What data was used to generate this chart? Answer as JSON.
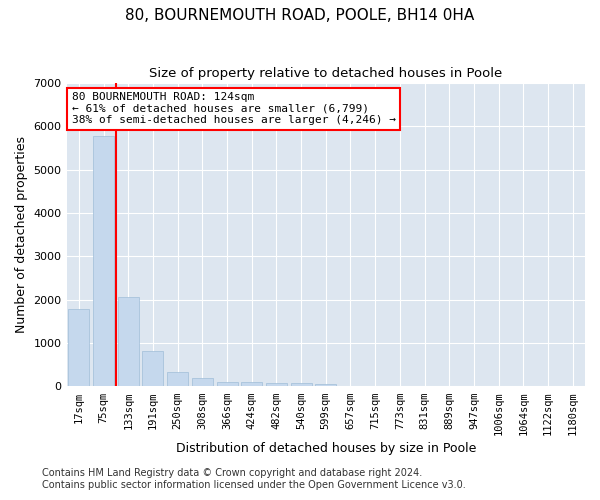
{
  "title1": "80, BOURNEMOUTH ROAD, POOLE, BH14 0HA",
  "title2": "Size of property relative to detached houses in Poole",
  "xlabel": "Distribution of detached houses by size in Poole",
  "ylabel": "Number of detached properties",
  "footnote1": "Contains HM Land Registry data © Crown copyright and database right 2024.",
  "footnote2": "Contains public sector information licensed under the Open Government Licence v3.0.",
  "bar_labels": [
    "17sqm",
    "75sqm",
    "133sqm",
    "191sqm",
    "250sqm",
    "308sqm",
    "366sqm",
    "424sqm",
    "482sqm",
    "540sqm",
    "599sqm",
    "657sqm",
    "715sqm",
    "773sqm",
    "831sqm",
    "889sqm",
    "947sqm",
    "1006sqm",
    "1064sqm",
    "1122sqm",
    "1180sqm"
  ],
  "bar_values": [
    1780,
    5780,
    2060,
    820,
    340,
    185,
    110,
    100,
    90,
    70,
    55,
    0,
    0,
    0,
    0,
    0,
    0,
    0,
    0,
    0,
    0
  ],
  "bar_color": "#c5d8ed",
  "bar_edge_color": "#a0bdd8",
  "vline_color": "red",
  "vline_pos": 1.5,
  "annotation_line1": "80 BOURNEMOUTH ROAD: 124sqm",
  "annotation_line2": "← 61% of detached houses are smaller (6,799)",
  "annotation_line3": "38% of semi-detached houses are larger (4,246) →",
  "annotation_box_color": "red",
  "ylim": [
    0,
    7000
  ],
  "yticks": [
    0,
    1000,
    2000,
    3000,
    4000,
    5000,
    6000,
    7000
  ],
  "plot_bg_color": "#dde6f0",
  "grid_color": "white",
  "title1_fontsize": 11,
  "title2_fontsize": 9.5,
  "axis_label_fontsize": 9,
  "tick_fontsize": 7.5,
  "footnote_fontsize": 7
}
